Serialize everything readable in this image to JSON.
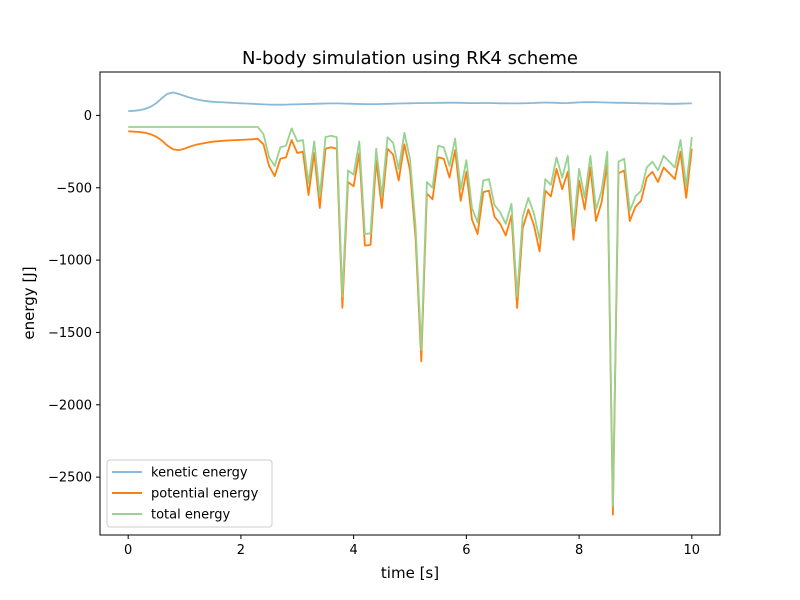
{
  "chart_data": {
    "type": "line",
    "title": "N-body simulation using RK4 scheme",
    "xlabel": "time [s]",
    "ylabel": "energy [J]",
    "xlim": [
      -0.5,
      10.5
    ],
    "ylim": [
      -2900,
      300
    ],
    "xticks": [
      0,
      2,
      4,
      6,
      8,
      10
    ],
    "yticks": [
      0,
      -500,
      -1000,
      -1500,
      -2000,
      -2500
    ],
    "grid": false,
    "legend_position": "lower-left",
    "x": [
      0.0,
      0.1,
      0.2,
      0.3,
      0.4,
      0.5,
      0.6,
      0.7,
      0.8,
      0.9,
      1.0,
      1.1,
      1.2,
      1.3,
      1.4,
      1.5,
      1.6,
      1.7,
      1.8,
      1.9,
      2.0,
      2.1,
      2.2,
      2.3,
      2.4,
      2.5,
      2.6,
      2.7,
      2.8,
      2.9,
      3.0,
      3.1,
      3.2,
      3.3,
      3.4,
      3.5,
      3.6,
      3.7,
      3.8,
      3.9,
      4.0,
      4.1,
      4.2,
      4.3,
      4.4,
      4.5,
      4.6,
      4.7,
      4.8,
      4.9,
      5.0,
      5.1,
      5.2,
      5.3,
      5.4,
      5.5,
      5.6,
      5.7,
      5.8,
      5.9,
      6.0,
      6.1,
      6.2,
      6.3,
      6.4,
      6.5,
      6.6,
      6.7,
      6.8,
      6.9,
      7.0,
      7.1,
      7.2,
      7.3,
      7.4,
      7.5,
      7.6,
      7.7,
      7.8,
      7.9,
      8.0,
      8.1,
      8.2,
      8.3,
      8.4,
      8.5,
      8.6,
      8.7,
      8.8,
      8.9,
      9.0,
      9.1,
      9.2,
      9.3,
      9.4,
      9.5,
      9.6,
      9.7,
      9.8,
      9.9,
      10.0
    ],
    "series": [
      {
        "name": "kenetic energy",
        "color": "#8ab9d9",
        "values": [
          30,
          32,
          36,
          45,
          60,
          85,
          120,
          150,
          158,
          148,
          135,
          122,
          112,
          104,
          98,
          94,
          92,
          90,
          88,
          86,
          84,
          82,
          80,
          78,
          76,
          75,
          74,
          74,
          75,
          76,
          77,
          78,
          79,
          80,
          81,
          82,
          83,
          83,
          82,
          81,
          80,
          79,
          78,
          78,
          78,
          79,
          80,
          81,
          82,
          83,
          84,
          85,
          85,
          86,
          86,
          87,
          87,
          88,
          88,
          87,
          86,
          85,
          85,
          86,
          86,
          85,
          84,
          84,
          83,
          83,
          84,
          85,
          86,
          88,
          89,
          88,
          87,
          85,
          86,
          88,
          90,
          91,
          92,
          91,
          90,
          89,
          88,
          87,
          87,
          86,
          85,
          84,
          83,
          82,
          82,
          81,
          80,
          80,
          81,
          82,
          83
        ]
      },
      {
        "name": "potential energy",
        "color": "#ff7f0e",
        "values": [
          -110,
          -112,
          -115,
          -120,
          -130,
          -148,
          -175,
          -210,
          -235,
          -240,
          -230,
          -215,
          -203,
          -195,
          -188,
          -182,
          -178,
          -175,
          -173,
          -171,
          -169,
          -167,
          -165,
          -162,
          -200,
          -350,
          -420,
          -300,
          -290,
          -170,
          -260,
          -250,
          -550,
          -260,
          -640,
          -230,
          -220,
          -230,
          -1330,
          -460,
          -490,
          -260,
          -900,
          -895,
          -310,
          -640,
          -230,
          -270,
          -450,
          -200,
          -380,
          -850,
          -1700,
          -540,
          -580,
          -290,
          -300,
          -430,
          -240,
          -590,
          -390,
          -720,
          -820,
          -530,
          -520,
          -700,
          -750,
          -830,
          -690,
          -1330,
          -780,
          -650,
          -760,
          -940,
          -520,
          -560,
          -370,
          -510,
          -390,
          -860,
          -450,
          -650,
          -360,
          -730,
          -600,
          -330,
          -2760,
          -400,
          -380,
          -730,
          -630,
          -590,
          -430,
          -390,
          -460,
          -360,
          -400,
          -440,
          -250,
          -570,
          -230
        ]
      },
      {
        "name": "total energy",
        "color": "#98d28f",
        "values": [
          -80,
          -80,
          -80,
          -80,
          -80,
          -80,
          -80,
          -80,
          -80,
          -80,
          -80,
          -80,
          -80,
          -80,
          -80,
          -80,
          -80,
          -80,
          -80,
          -80,
          -80,
          -80,
          -80,
          -80,
          -130,
          -290,
          -350,
          -220,
          -210,
          -90,
          -180,
          -170,
          -470,
          -180,
          -560,
          -150,
          -140,
          -150,
          -1250,
          -380,
          -410,
          -180,
          -820,
          -815,
          -230,
          -560,
          -150,
          -190,
          -370,
          -120,
          -300,
          -770,
          -1620,
          -460,
          -500,
          -210,
          -220,
          -350,
          -160,
          -510,
          -310,
          -640,
          -740,
          -450,
          -440,
          -620,
          -670,
          -750,
          -610,
          -1250,
          -700,
          -570,
          -680,
          -860,
          -440,
          -480,
          -290,
          -430,
          -280,
          -780,
          -370,
          -570,
          -280,
          -650,
          -520,
          -250,
          -2700,
          -320,
          -300,
          -660,
          -560,
          -520,
          -360,
          -320,
          -380,
          -280,
          -320,
          -360,
          -170,
          -490,
          -150
        ]
      }
    ]
  }
}
